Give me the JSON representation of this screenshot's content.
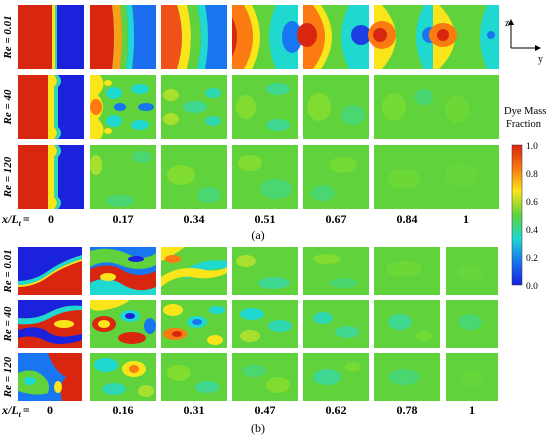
{
  "figure": {
    "panel_a": {
      "label": "(a)",
      "row_labels": [
        "Re = 0.01",
        "Re = 40",
        "Re = 120"
      ],
      "x_axis_label": "x/L",
      "x_axis_subscript": "t",
      "x_axis_equals": "=",
      "x_ticks": [
        "0",
        "0.17",
        "0.34",
        "0.51",
        "0.67",
        "0.84",
        "1"
      ]
    },
    "panel_b": {
      "label": "(b)",
      "row_labels": [
        "Re = 0.01",
        "Re = 40",
        "Re = 120"
      ],
      "x_axis_label": "x/L",
      "x_axis_subscript": "t",
      "x_axis_equals": "=",
      "x_ticks": [
        "0",
        "0.16",
        "0.31",
        "0.47",
        "0.62",
        "0.78",
        "1"
      ]
    },
    "axes_indicator": {
      "vertical": "z",
      "horizontal": "y"
    },
    "colorbar": {
      "title_line1": "Dye Mass",
      "title_line2": "Fraction",
      "ticks": [
        "1.0",
        "0.8",
        "0.6",
        "0.4",
        "0.2",
        "0.0"
      ],
      "range": [
        0.0,
        1.0
      ],
      "colors": [
        "#d8260f",
        "#fb7a12",
        "#f9e51a",
        "#5fd23c",
        "#1fd8d0",
        "#1877f0",
        "#1b1fe0"
      ]
    }
  }
}
